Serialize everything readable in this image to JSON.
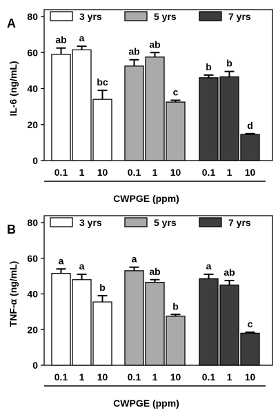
{
  "chart_data": [
    {
      "panel_label": "A",
      "type": "bar",
      "ylabel": "IL-6 (ng/mL)",
      "xlabel": "CWPGE  (ppm)",
      "ylim": [
        0,
        80
      ],
      "yticks": [
        "0",
        "20",
        "40",
        "60",
        "80"
      ],
      "categories": [
        "0.1",
        "1",
        "10"
      ],
      "legend_placement": "top",
      "series": [
        {
          "name": "3 yrs",
          "color": "#ffffff",
          "values": [
            59,
            61.5,
            34
          ],
          "errors": [
            3.5,
            2,
            5
          ],
          "labels": [
            "ab",
            "a",
            "bc"
          ]
        },
        {
          "name": "5 yrs",
          "color": "#aaaaaa",
          "values": [
            52.5,
            57.5,
            32.5
          ],
          "errors": [
            3.5,
            2.5,
            1
          ],
          "labels": [
            "ab",
            "ab",
            "c"
          ]
        },
        {
          "name": "7 yrs",
          "color": "#3d3d3d",
          "values": [
            46,
            46.5,
            14.5
          ],
          "errors": [
            1.5,
            3,
            0.5
          ],
          "labels": [
            "b",
            "b",
            "d"
          ]
        }
      ]
    },
    {
      "panel_label": "B",
      "type": "bar",
      "ylabel": "TNF-α (ng/mL)",
      "xlabel": "CWPGE  (ppm)",
      "ylim": [
        0,
        80
      ],
      "yticks": [
        "0",
        "20",
        "40",
        "60",
        "80"
      ],
      "categories": [
        "0.1",
        "1",
        "10"
      ],
      "legend_placement": "top",
      "series": [
        {
          "name": "3 yrs",
          "color": "#ffffff",
          "values": [
            51.5,
            48,
            35.5
          ],
          "errors": [
            2.5,
            3,
            3.5
          ],
          "labels": [
            "a",
            "a",
            "b"
          ]
        },
        {
          "name": "5 yrs",
          "color": "#aaaaaa",
          "values": [
            53,
            46.5,
            27.5
          ],
          "errors": [
            2,
            1.5,
            1
          ],
          "labels": [
            "a",
            "ab",
            "b"
          ]
        },
        {
          "name": "7 yrs",
          "color": "#3d3d3d",
          "values": [
            48.5,
            45,
            18
          ],
          "errors": [
            2.5,
            2.5,
            0.5
          ],
          "labels": [
            "a",
            "ab",
            "c"
          ]
        }
      ]
    }
  ]
}
